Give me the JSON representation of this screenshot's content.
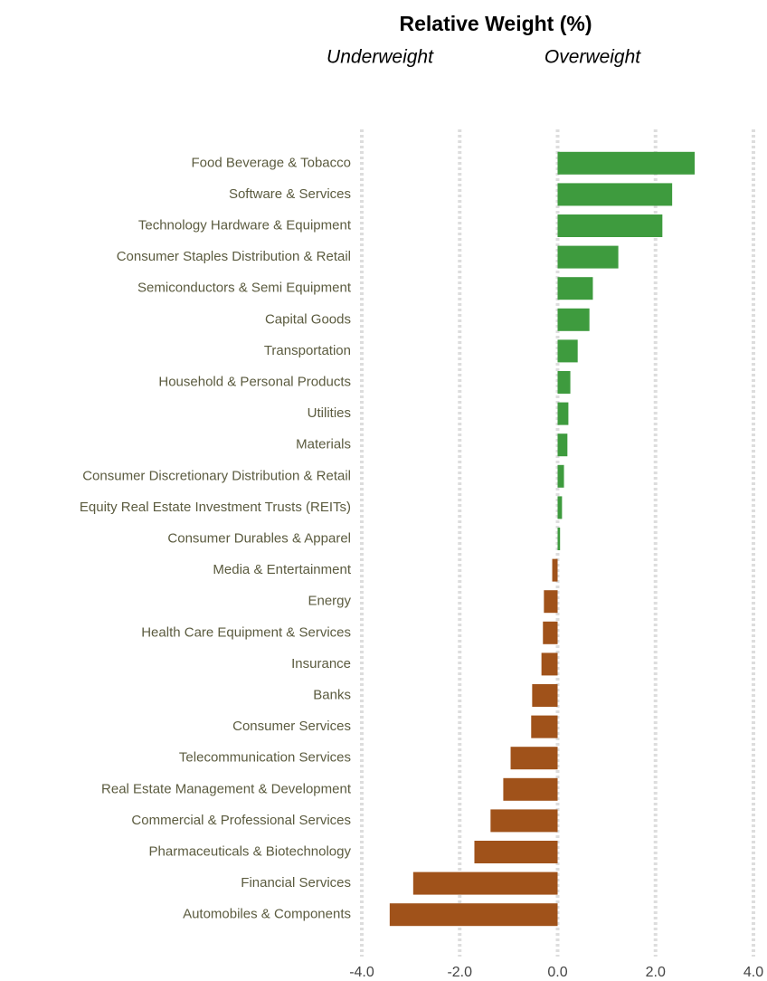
{
  "chart_data": {
    "type": "hbar",
    "title": "Relative Weight (%)",
    "annotations": [
      "Underweight",
      "Overweight"
    ],
    "categories": [
      "Food Beverage & Tobacco",
      "Software & Services",
      "Technology Hardware & Equipment",
      "Consumer Staples Distribution & Retail",
      "Semiconductors & Semi Equipment",
      "Capital Goods",
      "Transportation",
      "Household & Personal Products",
      "Utilities",
      "Materials",
      "Consumer Discretionary Distribution & Retail",
      "Equity Real Estate Investment Trusts (REITs)",
      "Consumer Durables & Apparel",
      "Media & Entertainment",
      "Energy",
      "Health Care Equipment & Services",
      "Insurance",
      "Banks",
      "Consumer Services",
      "Telecommunication Services",
      "Real Estate Management & Development",
      "Commercial  & Professional Services",
      "Pharmaceuticals & Biotechnology",
      "Financial Services",
      "Automobiles & Components"
    ],
    "values": [
      2.8,
      2.34,
      2.14,
      1.24,
      0.72,
      0.65,
      0.41,
      0.26,
      0.22,
      0.2,
      0.13,
      0.09,
      0.05,
      -0.11,
      -0.28,
      -0.3,
      -0.33,
      -0.52,
      -0.54,
      -0.96,
      -1.11,
      -1.37,
      -1.7,
      -2.95,
      -3.43
    ],
    "positive_color": "#3e9b3e",
    "negative_color": "#a0521a",
    "xlim": [
      -4,
      4
    ],
    "xticks": [
      {
        "value": -4,
        "label": "-4.0"
      },
      {
        "value": -2,
        "label": "-2.0"
      },
      {
        "value": 0,
        "label": "0.0"
      },
      {
        "value": 2,
        "label": "2.0"
      },
      {
        "value": 4,
        "label": "4.0"
      }
    ],
    "grid": true
  }
}
